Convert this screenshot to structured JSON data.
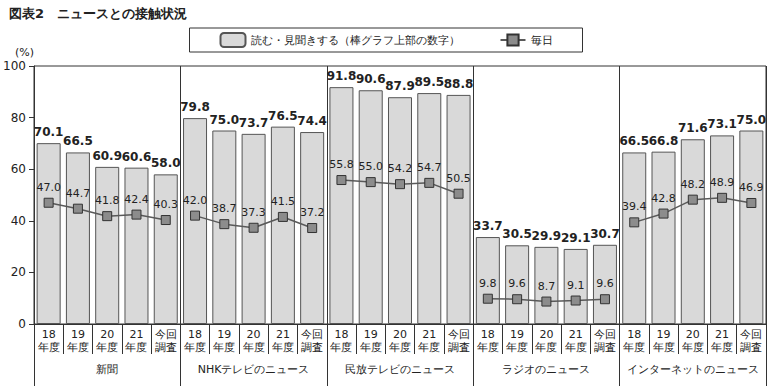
{
  "chart_data": {
    "type": "bar",
    "title": "図表2　ニュースとの接触状況",
    "y_label": "(%)",
    "categories": [
      "18年度",
      "19年度",
      "20年度",
      "21年度",
      "今回調査",
      "18年度",
      "19年度",
      "20年度",
      "21年度",
      "今回調査",
      "18年度",
      "19年度",
      "20年度",
      "21年度",
      "今回調査",
      "18年度",
      "19年度",
      "20年度",
      "21年度",
      "今回調査",
      "18年度",
      "19年度",
      "20年度",
      "21年度",
      "今回調査"
    ],
    "groups": [
      "新聞",
      "NHKテレビのニュース",
      "民放テレビのニュース",
      "ラジオのニュース",
      "インターネットのニュース"
    ],
    "series": [
      {
        "name": "読む・見聞きする（棒グラフ上部の数字）",
        "type": "bar",
        "color": "#d9d9d9",
        "values": [
          70.1,
          66.5,
          60.9,
          60.6,
          58.0,
          79.8,
          75.0,
          73.7,
          76.5,
          74.4,
          91.8,
          90.6,
          87.9,
          89.5,
          88.8,
          33.7,
          30.5,
          29.9,
          29.1,
          30.7,
          66.5,
          66.8,
          71.6,
          73.1,
          75.0
        ],
        "value_labels": [
          "70.1",
          "66.5",
          "60.9",
          "60.6",
          "58.0",
          "79.8",
          "75.0",
          "73.7",
          "76.5",
          "74.4",
          "91.8",
          "90.6",
          "87.9",
          "89.5",
          "88.8",
          "33.7",
          "30.5",
          "29.9",
          "29.1",
          "30.7",
          "66.5",
          "66.8",
          "71.6",
          "73.1",
          "75.0"
        ]
      },
      {
        "name": "毎日",
        "type": "line",
        "color": "#595959",
        "marker": "square",
        "values": [
          47.0,
          44.7,
          41.8,
          42.4,
          40.3,
          42.0,
          38.7,
          37.3,
          41.5,
          37.2,
          55.8,
          55.0,
          54.2,
          54.7,
          50.5,
          9.8,
          9.6,
          8.7,
          9.1,
          9.6,
          39.4,
          42.8,
          48.2,
          48.9,
          46.9
        ],
        "value_labels": [
          "47.0",
          "44.7",
          "41.8",
          "42.4",
          "40.3",
          "42.0",
          "38.7",
          "37.3",
          "41.5",
          "37.2",
          "55.8",
          "55.0",
          "54.2",
          "54.7",
          "50.5",
          "9.8",
          "9.6",
          "8.7",
          "9.1",
          "9.6",
          "39.4",
          "42.8",
          "48.2",
          "48.9",
          "46.9"
        ]
      }
    ],
    "ylim": [
      0,
      100
    ],
    "yticks": [
      0,
      20,
      40,
      60,
      80,
      100
    ],
    "grid": false,
    "legend": "top",
    "data_labels": true
  }
}
